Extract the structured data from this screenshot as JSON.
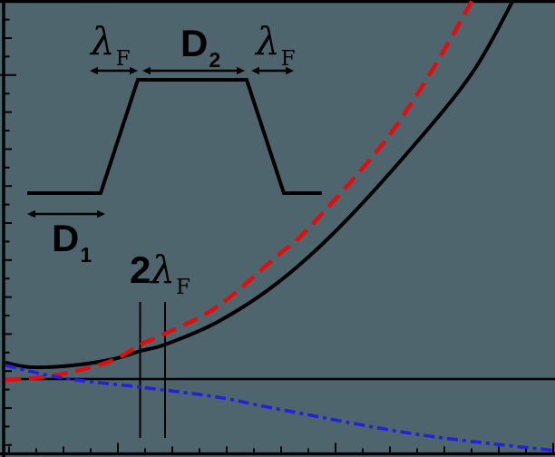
{
  "figure": {
    "background_color": "#4e656e",
    "ink_color": "#000000",
    "accent_red": "#e60c0c",
    "accent_blue": "#2222dd"
  },
  "labels": {
    "lambda_f_left": {
      "main": "λ",
      "sub": "F"
    },
    "d2": {
      "main": "D",
      "sub": "2"
    },
    "lambda_f_right": {
      "main": "λ",
      "sub": "F"
    },
    "d1": {
      "main": "D",
      "sub": "1"
    },
    "two_lambda_f": {
      "prefix": "2",
      "main": "λ",
      "sub": "F"
    }
  },
  "chart_data": {
    "type": "line",
    "title": "",
    "xlabel": "",
    "ylabel": "",
    "axis_numeric_labels": false,
    "coordinate_space": "figure pixels, 612x504, y increases downward",
    "background_color": "#4e656e",
    "frame": {
      "left_axis": true,
      "top_edge": true,
      "bottom_edge": true,
      "right_edge": false,
      "stroke": "#000000",
      "width": 3.2
    },
    "zero_line": {
      "y": 418,
      "x1": 5,
      "x2": 612,
      "width": 2.4,
      "color": "#000000"
    },
    "marker_lines": [
      {
        "name": "two-lambda-left-line",
        "x": 154.5,
        "y1": 333,
        "y2": 483,
        "width": 2,
        "color": "#000000"
      },
      {
        "name": "two-lambda-right-line",
        "x": 182,
        "y1": 333,
        "y2": 483,
        "width": 2,
        "color": "#000000"
      }
    ],
    "series": [
      {
        "name": "black-solid-curve",
        "color": "#000000",
        "style": "solid",
        "dash": null,
        "width": 4,
        "points": [
          [
            6,
            400
          ],
          [
            35,
            405
          ],
          [
            80,
            403
          ],
          [
            125,
            396
          ],
          [
            155,
            387
          ],
          [
            182,
            380
          ],
          [
            240,
            355
          ],
          [
            306,
            312
          ],
          [
            373,
            252
          ],
          [
            455,
            162
          ],
          [
            521,
            80
          ],
          [
            566,
            0
          ]
        ]
      },
      {
        "name": "red-dashed-curve",
        "color": "#e60c0c",
        "style": "dashed",
        "dash": "17 9",
        "width": 4.5,
        "points": [
          [
            6,
            419
          ],
          [
            60,
            414
          ],
          [
            120,
            399
          ],
          [
            155,
            380
          ],
          [
            182,
            368
          ],
          [
            240,
            338
          ],
          [
            306,
            282
          ],
          [
            340,
            252
          ],
          [
            421,
            160
          ],
          [
            475,
            80
          ],
          [
            521,
            0
          ]
        ]
      },
      {
        "name": "blue-dash-dot-curve",
        "color": "#2222dd",
        "style": "dashdot",
        "dash": "12 5 4 5",
        "width": 3.6,
        "points": [
          [
            6,
            403
          ],
          [
            70,
            417
          ],
          [
            155,
            427
          ],
          [
            240,
            438
          ],
          [
            306,
            451
          ],
          [
            460,
            479
          ],
          [
            612,
            497
          ]
        ]
      }
    ],
    "inset_profile": {
      "comment": "trapezoidal barrier sketch",
      "points": [
        [
          30,
          213
        ],
        [
          111,
          213
        ],
        [
          152,
          88
        ],
        [
          272,
          88
        ],
        [
          313,
          213
        ],
        [
          355,
          213
        ]
      ],
      "width": 4,
      "color": "#000000"
    },
    "arrows": [
      {
        "name": "lambda-f-left-extent",
        "x1": 99,
        "x2": 152,
        "y": 78,
        "double": true
      },
      {
        "name": "d2-extent",
        "x1": 157,
        "x2": 270,
        "y": 78,
        "double": true
      },
      {
        "name": "lambda-f-right-extent",
        "x1": 277,
        "x2": 324,
        "y": 78,
        "double": true
      },
      {
        "name": "d1-extent",
        "x1": 30,
        "x2": 116,
        "y": 236,
        "double": true
      }
    ],
    "left_axis": {
      "x": 4,
      "tick_color": "#000000",
      "tick_width": 2,
      "ticks": [
        [
          21.6,
          4.5,
          0
        ],
        [
          42,
          7,
          0
        ],
        [
          62.4,
          4.5,
          0
        ],
        [
          82.8,
          12,
          5
        ],
        [
          103.2,
          4.5,
          0
        ],
        [
          123.6,
          7,
          0
        ],
        [
          144,
          4.5,
          0
        ],
        [
          164.4,
          7,
          0
        ],
        [
          184.8,
          4.5,
          0
        ],
        [
          205.2,
          7,
          0
        ],
        [
          225.6,
          4.5,
          0
        ],
        [
          246,
          7,
          0
        ],
        [
          266.4,
          4.5,
          0
        ],
        [
          286.8,
          7,
          0
        ],
        [
          307.2,
          4.5,
          0
        ],
        [
          327.6,
          7,
          0
        ],
        [
          348,
          4.5,
          0
        ],
        [
          368.4,
          7,
          0
        ],
        [
          388.8,
          4.5,
          0
        ],
        [
          409.2,
          7,
          0
        ],
        [
          429.6,
          4.5,
          0
        ],
        [
          450,
          7,
          0
        ],
        [
          470.4,
          4.5,
          0
        ],
        [
          490.8,
          7,
          0
        ]
      ]
    },
    "bottom_axis": {
      "y": 500.5,
      "tick_color": "#000000",
      "tick_width": 2,
      "ticks": [
        [
          10,
          6
        ],
        [
          40,
          4
        ],
        [
          70,
          6
        ],
        [
          100,
          4
        ],
        [
          130,
          10
        ],
        [
          160,
          4
        ],
        [
          190,
          6
        ],
        [
          220,
          4
        ],
        [
          250,
          6
        ],
        [
          280,
          4
        ],
        [
          310,
          6
        ],
        [
          340,
          4
        ],
        [
          370,
          10
        ],
        [
          400,
          4
        ],
        [
          430,
          6
        ],
        [
          460,
          4
        ],
        [
          490,
          6
        ],
        [
          520,
          4
        ],
        [
          550,
          6
        ],
        [
          580,
          4
        ],
        [
          610,
          10
        ]
      ]
    }
  }
}
